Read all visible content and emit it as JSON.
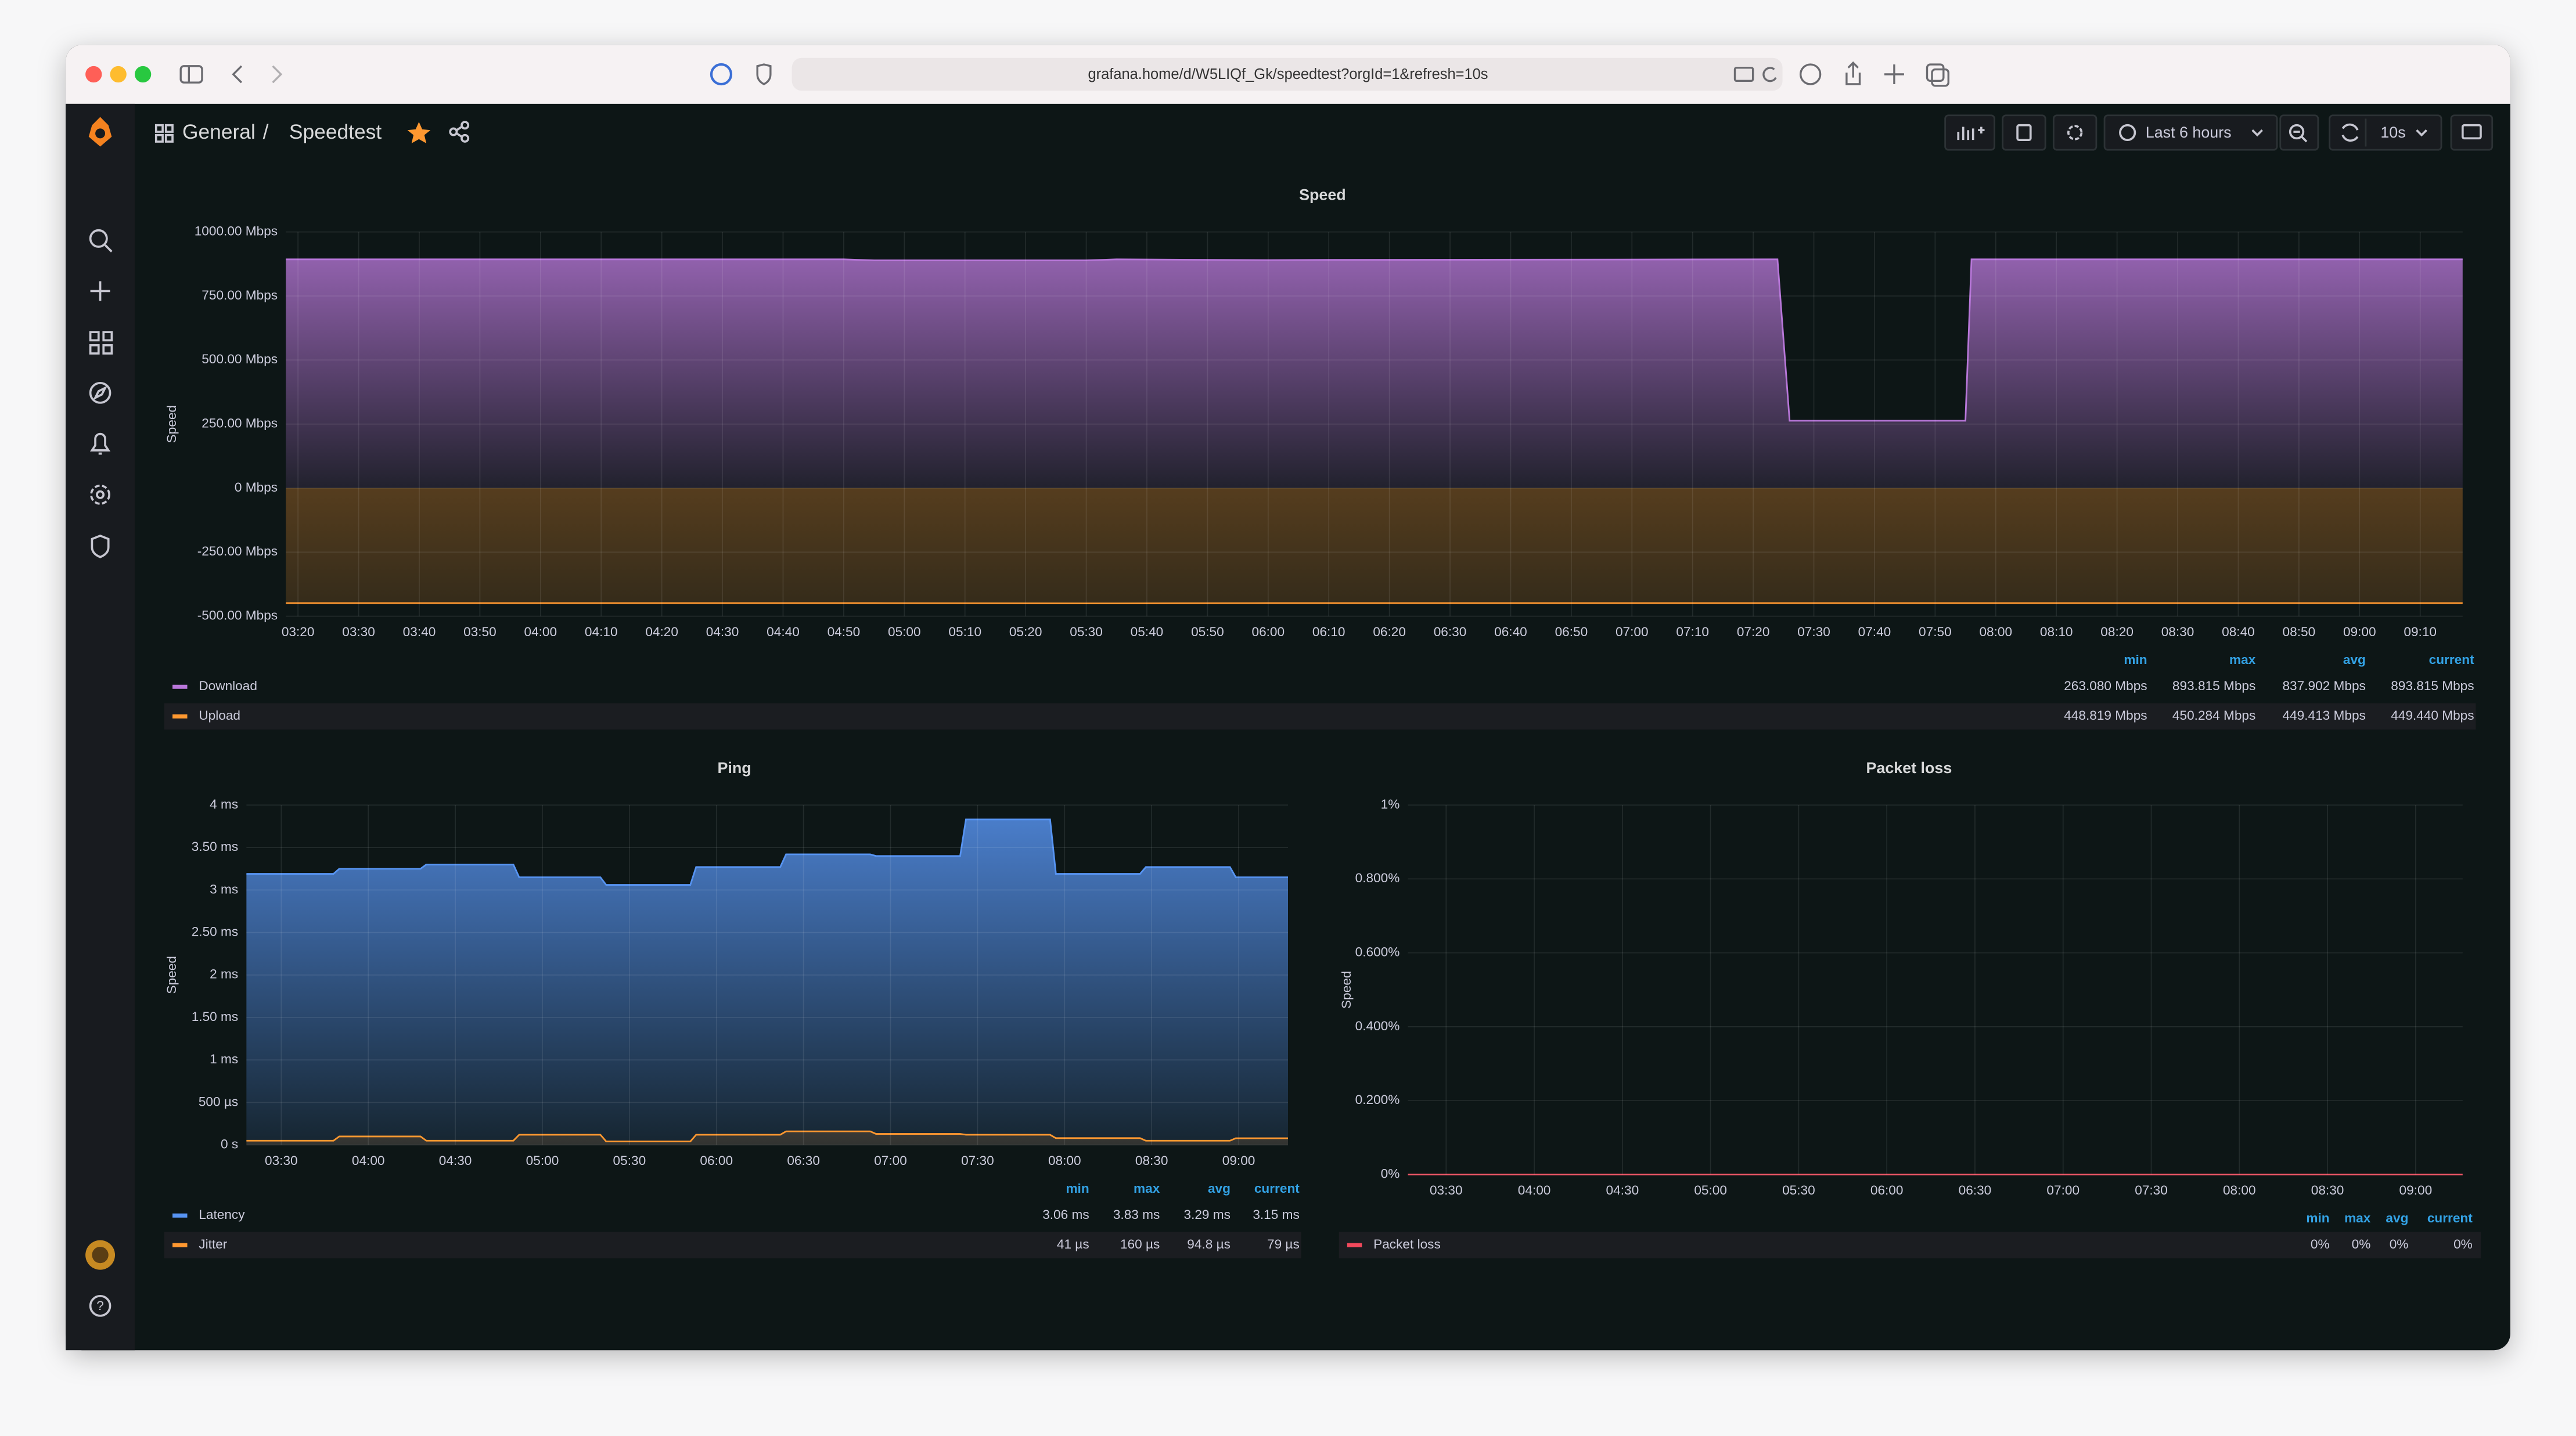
{
  "browser": {
    "url": "grafana.home/d/W5LIQf_Gk/speedtest?orgId=1&refresh=10s"
  },
  "header": {
    "folder": "General",
    "separator": "/",
    "dashboard": "Speedtest",
    "time_range": "Last 6 hours",
    "refresh": "10s"
  },
  "chart_data": [
    {
      "type": "area",
      "title": "Speed",
      "y_label": "Speed",
      "grid": true,
      "xlim": [
        "03:18",
        "09:17"
      ],
      "xticks": [
        "03:20",
        "03:30",
        "03:40",
        "03:50",
        "04:00",
        "04:10",
        "04:20",
        "04:30",
        "04:40",
        "04:50",
        "05:00",
        "05:10",
        "05:20",
        "05:30",
        "05:40",
        "05:50",
        "06:00",
        "06:10",
        "06:20",
        "06:30",
        "06:40",
        "06:50",
        "07:00",
        "07:10",
        "07:20",
        "07:30",
        "07:40",
        "07:50",
        "08:00",
        "08:10",
        "08:20",
        "08:30",
        "08:40",
        "08:50",
        "09:00",
        "09:10"
      ],
      "ylim": [
        -500,
        1000
      ],
      "yticks": [
        {
          "value": -500,
          "label": "-500.00 Mbps"
        },
        {
          "value": -250,
          "label": "-250.00 Mbps"
        },
        {
          "value": 0,
          "label": "0 Mbps"
        },
        {
          "value": 250,
          "label": "250.00 Mbps"
        },
        {
          "value": 500,
          "label": "500.00 Mbps"
        },
        {
          "value": 750,
          "label": "750.00 Mbps"
        },
        {
          "value": 1000,
          "label": "1000.00 Mbps"
        }
      ],
      "legend_columns": [
        "min",
        "max",
        "avg",
        "current"
      ],
      "x": [
        "03:18",
        "04:50",
        "04:55",
        "05:30",
        "05:35",
        "06:00",
        "06:10",
        "07:24",
        "07:26",
        "07:55",
        "07:56",
        "09:17"
      ],
      "series": [
        {
          "name": "Download",
          "color": "#b877d9",
          "values": [
            893,
            893,
            889,
            889,
            893,
            890,
            891,
            893,
            263,
            263,
            893,
            893
          ],
          "stats": [
            "263.080 Mbps",
            "893.815 Mbps",
            "837.902 Mbps",
            "893.815 Mbps"
          ]
        },
        {
          "name": "Upload",
          "color": "#ff9830",
          "values": [
            -449,
            -449,
            -449,
            -450,
            -450,
            -449,
            -449,
            -449,
            -449,
            -449,
            -449,
            -449
          ],
          "stats": [
            "448.819 Mbps",
            "450.284 Mbps",
            "449.413 Mbps",
            "449.440 Mbps"
          ]
        }
      ]
    },
    {
      "type": "area",
      "title": "Ping",
      "y_label": "Speed",
      "grid": true,
      "xlim": [
        "03:18",
        "09:17"
      ],
      "xticks": [
        "03:30",
        "04:00",
        "04:30",
        "05:00",
        "05:30",
        "06:00",
        "06:30",
        "07:00",
        "07:30",
        "08:00",
        "08:30",
        "09:00"
      ],
      "ylim": [
        0,
        4
      ],
      "yticks": [
        {
          "value": 0,
          "label": "0 s"
        },
        {
          "value": 0.5,
          "label": "500 µs"
        },
        {
          "value": 1,
          "label": "1 ms"
        },
        {
          "value": 1.5,
          "label": "1.50 ms"
        },
        {
          "value": 2,
          "label": "2 ms"
        },
        {
          "value": 2.5,
          "label": "2.50 ms"
        },
        {
          "value": 3,
          "label": "3 ms"
        },
        {
          "value": 3.5,
          "label": "3.50 ms"
        },
        {
          "value": 4,
          "label": "4 ms"
        }
      ],
      "legend_columns": [
        "min",
        "max",
        "avg",
        "current"
      ],
      "x": [
        "03:18",
        "03:48",
        "03:50",
        "04:18",
        "04:20",
        "04:50",
        "04:52",
        "05:20",
        "05:22",
        "05:51",
        "05:53",
        "06:22",
        "06:24",
        "06:53",
        "06:55",
        "07:24",
        "07:26",
        "07:55",
        "07:57",
        "08:26",
        "08:28",
        "08:57",
        "08:59",
        "09:17"
      ],
      "series": [
        {
          "name": "Latency",
          "color": "#5794f2",
          "values": [
            3.19,
            3.19,
            3.25,
            3.25,
            3.3,
            3.3,
            3.15,
            3.15,
            3.06,
            3.06,
            3.27,
            3.27,
            3.42,
            3.42,
            3.4,
            3.4,
            3.83,
            3.83,
            3.19,
            3.19,
            3.27,
            3.27,
            3.15,
            3.15
          ],
          "stats": [
            "3.06 ms",
            "3.83 ms",
            "3.29 ms",
            "3.15 ms"
          ]
        },
        {
          "name": "Jitter",
          "color": "#ff9830",
          "values": [
            0.05,
            0.05,
            0.1,
            0.1,
            0.05,
            0.05,
            0.12,
            0.12,
            0.041,
            0.041,
            0.12,
            0.12,
            0.16,
            0.16,
            0.13,
            0.13,
            0.12,
            0.12,
            0.08,
            0.08,
            0.05,
            0.05,
            0.079,
            0.079
          ],
          "stats": [
            "41 µs",
            "160 µs",
            "94.8 µs",
            "79 µs"
          ]
        }
      ]
    },
    {
      "type": "line",
      "title": "Packet loss",
      "y_label": "Speed",
      "grid": true,
      "xlim": [
        "03:17",
        "09:16"
      ],
      "xticks": [
        "03:30",
        "04:00",
        "04:30",
        "05:00",
        "05:30",
        "06:00",
        "06:30",
        "07:00",
        "07:30",
        "08:00",
        "08:30",
        "09:00"
      ],
      "ylim": [
        0,
        1
      ],
      "yticks": [
        {
          "value": 0,
          "label": "0%"
        },
        {
          "value": 0.2,
          "label": "0.200%"
        },
        {
          "value": 0.4,
          "label": "0.400%"
        },
        {
          "value": 0.6,
          "label": "0.600%"
        },
        {
          "value": 0.8,
          "label": "0.800%"
        },
        {
          "value": 1,
          "label": "1%"
        }
      ],
      "legend_columns": [
        "min",
        "max",
        "avg",
        "current"
      ],
      "x": [
        "03:17",
        "09:16"
      ],
      "series": [
        {
          "name": "Packet loss",
          "color": "#f2495c",
          "values": [
            0,
            0
          ],
          "stats": [
            "0%",
            "0%",
            "0%",
            "0%"
          ]
        }
      ]
    }
  ]
}
